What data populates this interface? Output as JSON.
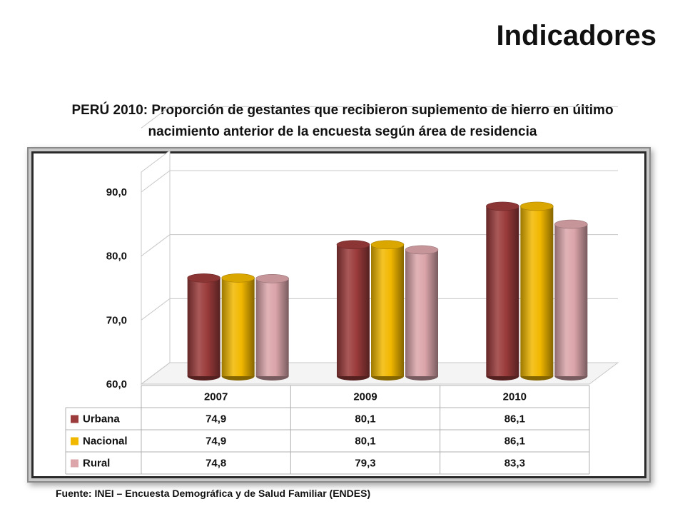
{
  "page_heading": "Indicadores",
  "source": "Fuente: INEI – Encuesta Demográfica y de Salud Familiar (ENDES)",
  "chart_data": {
    "type": "bar",
    "title_lines": [
      "PERÚ 2010: Proporción de gestantes que recibieron suplemento de hierro en último",
      "nacimiento anterior de la encuesta según área de residencia"
    ],
    "categories": [
      "2007",
      "2009",
      "2010"
    ],
    "series": [
      {
        "name": "Urbana",
        "values": [
          74.9,
          80.1,
          86.1
        ],
        "color": "#9b3b3b"
      },
      {
        "name": "Nacional",
        "values": [
          74.9,
          80.1,
          86.1
        ],
        "color": "#f2b800"
      },
      {
        "name": "Rural",
        "values": [
          74.8,
          79.3,
          83.3
        ],
        "color": "#dba5aa"
      }
    ],
    "value_labels": [
      [
        "74,9",
        "80,1",
        "86,1"
      ],
      [
        "74,9",
        "80,1",
        "86,1"
      ],
      [
        "74,8",
        "79,3",
        "83,3"
      ]
    ],
    "y_ticks": [
      "60,0",
      "70,0",
      "80,0",
      "90,0"
    ],
    "ylim": [
      60,
      90
    ],
    "ystep": 10,
    "style": "3d-cylinder",
    "grid": true,
    "legend": "data-table-left"
  }
}
